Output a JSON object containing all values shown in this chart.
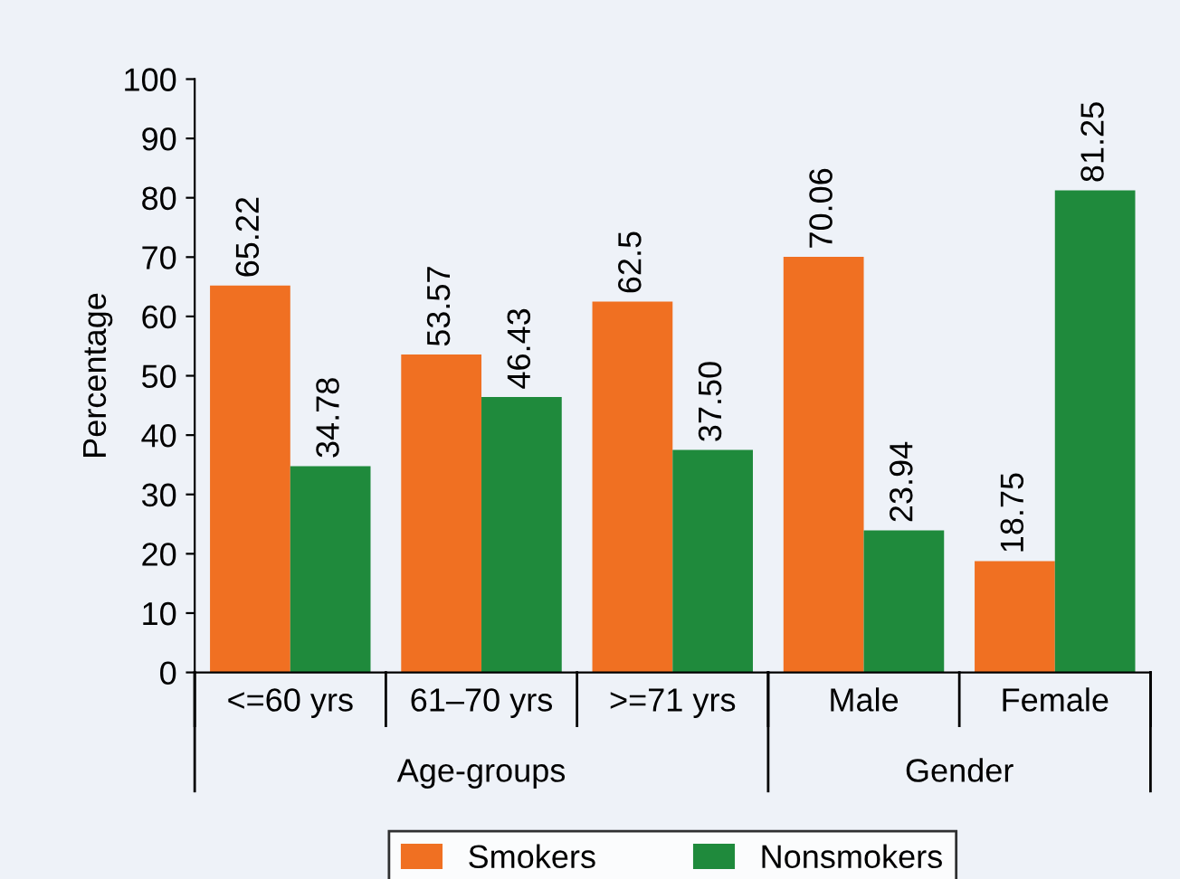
{
  "chart_data": {
    "type": "bar",
    "ylabel": "Percentage",
    "categories": [
      "<=60 yrs",
      "61–70 yrs",
      ">=71 yrs",
      "Male",
      "Female"
    ],
    "series": [
      {
        "name": "Smokers",
        "color": "#f07022",
        "values": [
          65.22,
          53.57,
          62.5,
          70.06,
          18.75
        ],
        "value_labels": [
          "65.22",
          "53.57",
          "62.5",
          "70.06",
          "18.75"
        ]
      },
      {
        "name": "Nonsmokers",
        "color": "#1f8a3c",
        "values": [
          34.78,
          46.43,
          37.5,
          23.94,
          81.25
        ],
        "value_labels": [
          "34.78",
          "46.43",
          "37.50",
          "23.94",
          "81.25"
        ]
      }
    ],
    "annotations": [
      "Age-groups",
      "Gender"
    ],
    "ylim": [
      0,
      100
    ],
    "yticks": [
      0,
      10,
      20,
      30,
      40,
      50,
      60,
      70,
      80,
      90,
      100
    ],
    "grid": false,
    "legend": "bottom"
  }
}
